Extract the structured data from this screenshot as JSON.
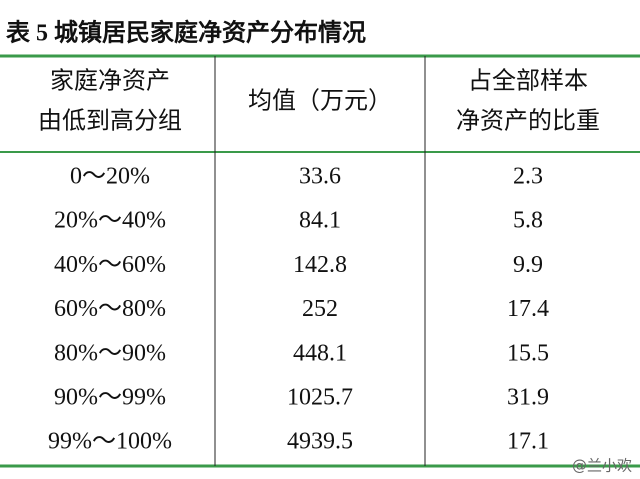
{
  "title": "表 5  城镇居民家庭净资产分布情况",
  "table": {
    "header": [
      [
        "家庭净资产",
        "由低到高分组"
      ],
      [
        "均值（万元）"
      ],
      [
        "占全部样本",
        "净资产的比重"
      ]
    ],
    "rows": [
      [
        "0～20%",
        "33.6",
        "2.3"
      ],
      [
        "20%～40%",
        "84.1",
        "5.8"
      ],
      [
        "40%～60%",
        "142.8",
        "9.9"
      ],
      [
        "60%～80%",
        "252",
        "17.4"
      ],
      [
        "80%～90%",
        "448.1",
        "15.5"
      ],
      [
        "90%～99%",
        "1025.7",
        "31.9"
      ],
      [
        "99%～100%",
        "4939.5",
        "17.1"
      ]
    ]
  },
  "watermark": "@兰小欢"
}
